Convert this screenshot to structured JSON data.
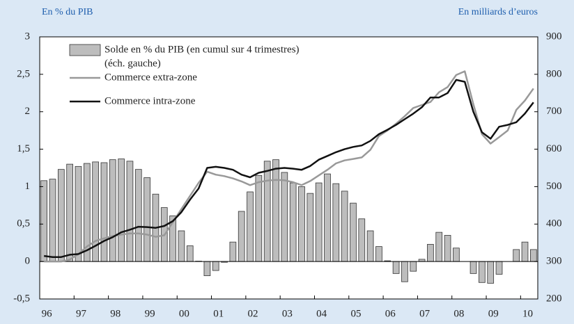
{
  "chart_data": {
    "type": "bar",
    "left_axis_label": "En % du PIB",
    "right_axis_label": "En milliards d’euros",
    "axis_note": "(éch. gauche)",
    "categories": [
      "96",
      null,
      null,
      null,
      "97",
      null,
      null,
      null,
      "98",
      null,
      null,
      null,
      "99",
      null,
      null,
      null,
      "00",
      null,
      null,
      null,
      "01",
      null,
      null,
      null,
      "02",
      null,
      null,
      null,
      "03",
      null,
      null,
      null,
      "04",
      null,
      null,
      null,
      "05",
      null,
      null,
      null,
      "06",
      null,
      null,
      null,
      "07",
      null,
      null,
      null,
      "08",
      null,
      null,
      null,
      "09",
      null,
      null,
      null,
      "10",
      null
    ],
    "series": [
      {
        "name": "Solde en % du PIB (en cumul sur 4 trimestres)",
        "type": "bar",
        "color": "#bdbdbd",
        "values": [
          1.08,
          1.1,
          1.23,
          1.3,
          1.27,
          1.31,
          1.33,
          1.32,
          1.36,
          1.37,
          1.34,
          1.23,
          1.12,
          0.9,
          0.72,
          0.61,
          0.41,
          0.21,
          0.005,
          -0.19,
          -0.12,
          -0.01,
          0.26,
          0.67,
          0.93,
          1.15,
          1.34,
          1.36,
          1.19,
          1.05,
          1.0,
          0.91,
          1.05,
          1.17,
          1.04,
          0.94,
          0.78,
          0.57,
          0.41,
          0.2,
          0.01,
          -0.16,
          -0.27,
          -0.13,
          0.03,
          0.23,
          0.39,
          0.35,
          0.18,
          0.0,
          -0.16,
          -0.28,
          -0.29,
          -0.17,
          0.0,
          0.16,
          0.26,
          0.16
        ]
      },
      {
        "name": "Commerce extra-zone",
        "type": "line",
        "axis": "y2",
        "color": "#999999",
        "values": [
          300,
          300,
          300,
          305,
          320,
          340,
          355,
          362,
          368,
          372,
          375,
          375,
          372,
          366,
          370,
          405,
          440,
          475,
          510,
          540,
          532,
          528,
          522,
          514,
          504,
          512,
          516,
          518,
          517,
          512,
          504,
          515,
          530,
          545,
          562,
          570,
          574,
          578,
          598,
          635,
          650,
          668,
          688,
          710,
          718,
          726,
          752,
          766,
          798,
          808,
          720,
          640,
          615,
          632,
          650,
          705,
          730,
          762
        ]
      },
      {
        "name": "Commerce intra-zone",
        "type": "line",
        "axis": "y2",
        "color": "#111111",
        "values": [
          315,
          312,
          312,
          318,
          320,
          330,
          342,
          355,
          365,
          378,
          385,
          393,
          392,
          390,
          395,
          408,
          432,
          465,
          495,
          550,
          553,
          550,
          545,
          532,
          525,
          537,
          542,
          548,
          550,
          548,
          545,
          555,
          572,
          582,
          592,
          600,
          606,
          610,
          622,
          640,
          652,
          665,
          680,
          695,
          712,
          738,
          738,
          750,
          785,
          780,
          700,
          645,
          628,
          660,
          665,
          672,
          695,
          725
        ]
      }
    ],
    "ylim": [
      -0.5,
      3
    ],
    "yticks": [
      {
        "value": -0.5,
        "label": "-0,5"
      },
      0,
      {
        "value": 0.5,
        "label": "0,5"
      },
      1,
      {
        "value": 1.5,
        "label": "1,5"
      },
      2,
      {
        "value": 2.5,
        "label": "2,5"
      },
      3
    ],
    "y2lim": [
      200,
      900
    ],
    "y2ticks": [
      200,
      300,
      400,
      500,
      600,
      700,
      800,
      900
    ]
  }
}
